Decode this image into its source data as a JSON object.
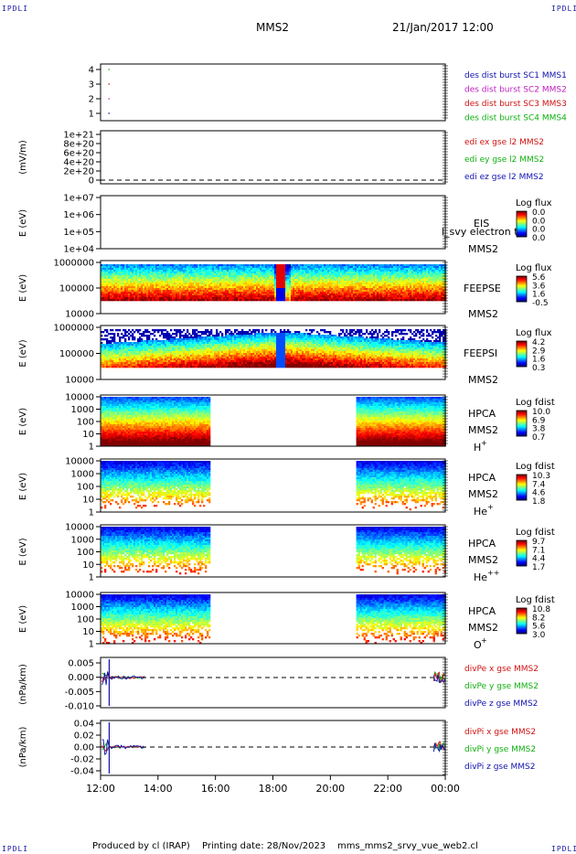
{
  "header": {
    "corner_label": "IPDLI",
    "spacecraft": "MMS2",
    "datetime": "21/Jan/2017 12:00"
  },
  "footer": {
    "produced_by": "Produced by cl (IRAP)",
    "printing_date": "Printing date: 28/Nov/2023",
    "filename": "mms_mms2_srvy_vue_web2.cl"
  },
  "chart_data": [
    {
      "type": "line",
      "panel": "burst",
      "yticks": [
        "1",
        "2",
        "3",
        "4"
      ],
      "ylim": [
        0.5,
        4.5
      ],
      "legend": [
        {
          "label": "des dist burst SC1 MMS1",
          "color": "#1010b0"
        },
        {
          "label": "des dist burst SC2 MMS2",
          "color": "#c020c0"
        },
        {
          "label": "des dist burst SC3 MMS3",
          "color": "#d01010"
        },
        {
          "label": "des dist burst SC4 MMS4",
          "color": "#10b010"
        }
      ],
      "series": [
        {
          "name": "des dist burst SC4 MMS4",
          "x": [
            "12:15",
            "12:18"
          ],
          "y": [
            4,
            4
          ],
          "color": "#10b010"
        },
        {
          "name": "des dist burst SC3 MMS3",
          "x": [
            "12:15",
            "12:18"
          ],
          "y": [
            3,
            3
          ],
          "color": "#d01010"
        },
        {
          "name": "des dist burst SC2 MMS2",
          "x": [
            "12:15",
            "12:18"
          ],
          "y": [
            2,
            2
          ],
          "color": "#c020c0"
        },
        {
          "name": "des dist burst SC1 MMS1",
          "x": [
            "12:15",
            "12:18"
          ],
          "y": [
            1,
            1
          ],
          "color": "#1010b0"
        }
      ]
    },
    {
      "type": "line",
      "panel": "edi",
      "ylabel": "(mV/m)",
      "yticks": [
        "0",
        "2e+20",
        "4e+20",
        "6e+20",
        "8e+20",
        "1e+21"
      ],
      "ylim": [
        0,
        1e+21
      ],
      "legend": [
        {
          "label": "edi ex gse l2 MMS2",
          "color": "#d01010"
        },
        {
          "label": "edi ey gse l2 MMS2",
          "color": "#10b010"
        },
        {
          "label": "edi ez gse l2 MMS2",
          "color": "#1010b0"
        }
      ]
    },
    {
      "type": "heatmap",
      "panel": "eis",
      "ylabel": "E (eV)",
      "yticks": [
        "1e+04",
        "1e+05",
        "1e+06",
        "1e+07"
      ],
      "instrument": "EIS",
      "sc": "MMS2",
      "overlay_text": "l_svy electron to",
      "colorbar": {
        "title": "Log flux",
        "ticks": [
          "0.0",
          "0.0",
          "0.0",
          "0.0"
        ]
      }
    },
    {
      "type": "heatmap",
      "panel": "feepse",
      "ylabel": "E (eV)",
      "yticks": [
        "10000",
        "100000",
        "1000000"
      ],
      "instrument": "FEEPSE",
      "sc": "MMS2",
      "colorbar": {
        "title": "Log flux",
        "ticks": [
          "5.6",
          "3.6",
          "1.6",
          "-0.5"
        ]
      }
    },
    {
      "type": "heatmap",
      "panel": "feepsi",
      "ylabel": "E (eV)",
      "yticks": [
        "10000",
        "100000",
        "1000000"
      ],
      "instrument": "FEEPSI",
      "sc": "MMS2",
      "colorbar": {
        "title": "Log flux",
        "ticks": [
          "4.2",
          "2.9",
          "1.6",
          "0.3"
        ]
      }
    },
    {
      "type": "heatmap",
      "panel": "hpca-h",
      "ylabel": "E (eV)",
      "yticks": [
        "1",
        "10",
        "100",
        "1000",
        "10000"
      ],
      "instrument": "HPCA",
      "sc": "MMS2",
      "species": "H",
      "species_sup": "+",
      "colorbar": {
        "title": "Log fdist",
        "ticks": [
          "10.0",
          "6.9",
          "3.8",
          "0.7"
        ]
      }
    },
    {
      "type": "heatmap",
      "panel": "hpca-he",
      "ylabel": "E (eV)",
      "yticks": [
        "1",
        "10",
        "100",
        "1000",
        "10000"
      ],
      "instrument": "HPCA",
      "sc": "MMS2",
      "species": "He",
      "species_sup": "+",
      "colorbar": {
        "title": "Log fdist",
        "ticks": [
          "10.3",
          "7.4",
          "4.6",
          "1.8"
        ]
      }
    },
    {
      "type": "heatmap",
      "panel": "hpca-he2",
      "ylabel": "E (eV)",
      "yticks": [
        "1",
        "10",
        "100",
        "1000",
        "10000"
      ],
      "instrument": "HPCA",
      "sc": "MMS2",
      "species": "He",
      "species_sup": "++",
      "colorbar": {
        "title": "Log fdist",
        "ticks": [
          "9.7",
          "7.1",
          "4.4",
          "1.7"
        ]
      }
    },
    {
      "type": "heatmap",
      "panel": "hpca-o",
      "ylabel": "E (eV)",
      "yticks": [
        "1",
        "10",
        "100",
        "1000",
        "10000"
      ],
      "instrument": "HPCA",
      "sc": "MMS2",
      "species": "O",
      "species_sup": "+",
      "colorbar": {
        "title": "Log fdist",
        "ticks": [
          "10.8",
          "8.2",
          "5.6",
          "3.0"
        ]
      }
    },
    {
      "type": "line",
      "panel": "divpe",
      "ylabel": "(nPa/km)",
      "yticks": [
        "-0.010",
        "-0.005",
        "0.000",
        "0.005"
      ],
      "ylim": [
        -0.01,
        0.007
      ],
      "legend": [
        {
          "label": "divPe x gse MMS2",
          "color": "#d01010"
        },
        {
          "label": "divPe y gse MMS2",
          "color": "#10b010"
        },
        {
          "label": "divPe z gse MMS2",
          "color": "#1010b0"
        }
      ]
    },
    {
      "type": "line",
      "panel": "divpi",
      "ylabel": "(nPa/km)",
      "yticks": [
        "-0.04",
        "-0.02",
        "0.00",
        "0.02",
        "0.04"
      ],
      "ylim": [
        -0.045,
        0.045
      ],
      "legend": [
        {
          "label": "divPi x gse MMS2",
          "color": "#d01010"
        },
        {
          "label": "divPi y gse MMS2",
          "color": "#10b010"
        },
        {
          "label": "divPi z gse MMS2",
          "color": "#1010b0"
        }
      ]
    }
  ],
  "time_axis": {
    "ticks": [
      "12:00",
      "14:00",
      "16:00",
      "18:00",
      "20:00",
      "22:00",
      "00:00"
    ],
    "range_hours": [
      12,
      24
    ]
  }
}
